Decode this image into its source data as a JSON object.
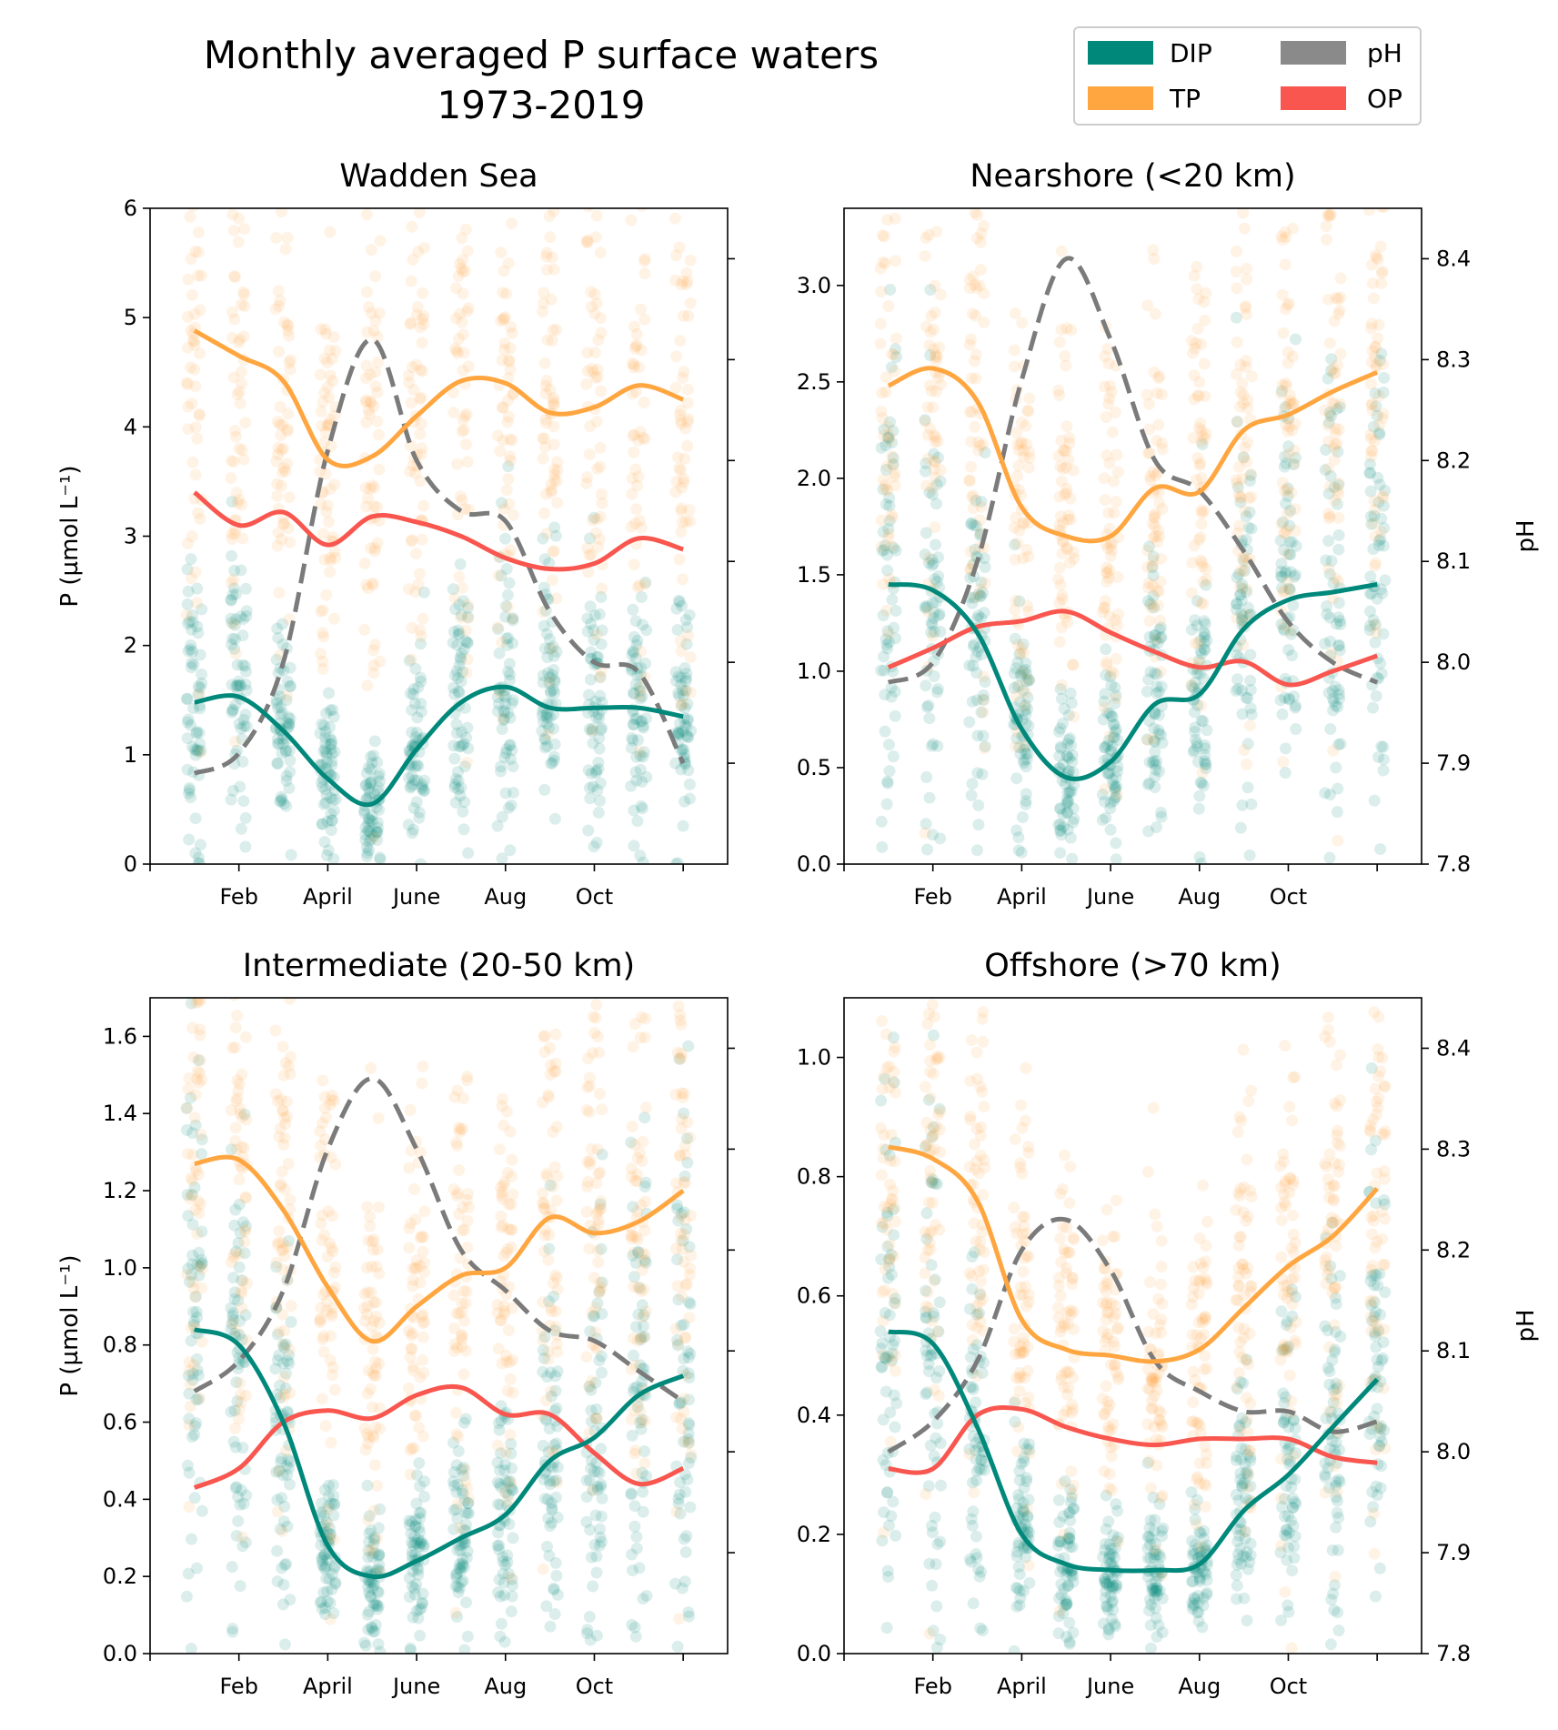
{
  "figure_title": [
    "Monthly averaged P surface waters",
    "1973-2019"
  ],
  "legend": [
    {
      "label": "DIP",
      "color": "#00897b"
    },
    {
      "label": "TP",
      "color": "#ffa640"
    },
    {
      "label": "pH",
      "color": "#8a8a8a"
    },
    {
      "label": "OP",
      "color": "#f8564e"
    }
  ],
  "chart_data": [
    {
      "type": "line",
      "title": "Wadden Sea",
      "ylabel": "P (µmol L⁻¹)",
      "y2label": "",
      "ylim": [
        0,
        6
      ],
      "y2lim": [
        7.8,
        8.45
      ],
      "yticks": [
        "0",
        "1",
        "2",
        "3",
        "4",
        "5",
        "6"
      ],
      "y2ticks": [
        "",
        "",
        "",
        "",
        "",
        ""
      ],
      "x_tick_labels": [
        "",
        "Feb",
        "April",
        "June",
        "Aug",
        "Oct",
        ""
      ],
      "x": [
        1,
        2,
        3,
        4,
        5,
        6,
        7,
        8,
        9,
        10,
        11,
        12
      ],
      "series": [
        {
          "name": "DIP",
          "values": [
            1.48,
            1.53,
            1.22,
            0.78,
            0.55,
            1.05,
            1.48,
            1.62,
            1.43,
            1.43,
            1.43,
            1.35
          ]
        },
        {
          "name": "TP",
          "values": [
            4.88,
            4.65,
            4.42,
            3.7,
            3.73,
            4.1,
            4.42,
            4.4,
            4.13,
            4.18,
            4.38,
            4.25
          ]
        },
        {
          "name": "OP",
          "values": [
            3.4,
            3.1,
            3.22,
            2.92,
            3.18,
            3.13,
            3.0,
            2.8,
            2.7,
            2.75,
            2.98,
            2.88
          ]
        },
        {
          "name": "pH",
          "values": [
            7.89,
            7.91,
            8.0,
            8.21,
            8.32,
            8.2,
            8.15,
            8.14,
            8.05,
            8.0,
            7.99,
            7.9
          ]
        }
      ],
      "scatter_groups": [
        "DIP",
        "TP"
      ]
    },
    {
      "type": "line",
      "title": "Nearshore (<20 km)",
      "ylabel": "",
      "y2label": "pH",
      "ylim": [
        0,
        3.4
      ],
      "y2lim": [
        7.8,
        8.45
      ],
      "yticks": [
        "0.0",
        "0.5",
        "1.0",
        "1.5",
        "2.0",
        "2.5",
        "3.0"
      ],
      "y2ticks": [
        "7.8",
        "7.9",
        "8.0",
        "8.1",
        "8.2",
        "8.3",
        "8.4"
      ],
      "x_tick_labels": [
        "",
        "Feb",
        "April",
        "June",
        "Aug",
        "Oct",
        ""
      ],
      "x": [
        1,
        2,
        3,
        4,
        5,
        6,
        7,
        8,
        9,
        10,
        11,
        12
      ],
      "series": [
        {
          "name": "DIP",
          "values": [
            1.45,
            1.42,
            1.2,
            0.7,
            0.45,
            0.53,
            0.83,
            0.88,
            1.22,
            1.37,
            1.41,
            1.45
          ]
        },
        {
          "name": "TP",
          "values": [
            2.48,
            2.57,
            2.4,
            1.85,
            1.7,
            1.7,
            1.95,
            1.93,
            2.25,
            2.33,
            2.45,
            2.55
          ]
        },
        {
          "name": "OP",
          "values": [
            1.02,
            1.12,
            1.23,
            1.26,
            1.31,
            1.2,
            1.1,
            1.02,
            1.05,
            0.93,
            1.0,
            1.08
          ]
        },
        {
          "name": "pH",
          "values": [
            7.98,
            8.0,
            8.1,
            8.28,
            8.4,
            8.32,
            8.2,
            8.17,
            8.11,
            8.04,
            8.0,
            7.98
          ]
        }
      ],
      "scatter_groups": [
        "DIP",
        "TP"
      ]
    },
    {
      "type": "line",
      "title": "Intermediate (20-50 km)",
      "ylabel": "P (µmol L⁻¹)",
      "y2label": "",
      "ylim": [
        0,
        1.7
      ],
      "y2lim": [
        7.8,
        8.45
      ],
      "yticks": [
        "0.0",
        "0.2",
        "0.4",
        "0.6",
        "0.8",
        "1.0",
        "1.2",
        "1.4",
        "1.6"
      ],
      "y2ticks": [
        "",
        "",
        "",
        "",
        "",
        ""
      ],
      "x_tick_labels": [
        "",
        "Feb",
        "April",
        "June",
        "Aug",
        "Oct",
        ""
      ],
      "x": [
        1,
        2,
        3,
        4,
        5,
        6,
        7,
        8,
        9,
        10,
        11,
        12
      ],
      "series": [
        {
          "name": "DIP",
          "values": [
            0.84,
            0.8,
            0.6,
            0.28,
            0.2,
            0.24,
            0.3,
            0.36,
            0.5,
            0.56,
            0.67,
            0.72
          ]
        },
        {
          "name": "TP",
          "values": [
            1.27,
            1.28,
            1.15,
            0.95,
            0.81,
            0.9,
            0.98,
            1.0,
            1.13,
            1.09,
            1.12,
            1.2
          ]
        },
        {
          "name": "OP",
          "values": [
            0.43,
            0.48,
            0.6,
            0.63,
            0.61,
            0.67,
            0.69,
            0.62,
            0.62,
            0.52,
            0.44,
            0.48
          ]
        },
        {
          "name": "pH",
          "values": [
            8.06,
            8.09,
            8.16,
            8.3,
            8.37,
            8.3,
            8.2,
            8.16,
            8.12,
            8.11,
            8.08,
            8.05
          ]
        }
      ],
      "scatter_groups": [
        "DIP",
        "TP"
      ]
    },
    {
      "type": "line",
      "title": "Offshore (>70 km)",
      "ylabel": "",
      "y2label": "pH",
      "ylim": [
        0,
        1.1
      ],
      "y2lim": [
        7.8,
        8.45
      ],
      "yticks": [
        "0.0",
        "0.2",
        "0.4",
        "0.6",
        "0.8",
        "1.0"
      ],
      "y2ticks": [
        "7.8",
        "7.9",
        "8.0",
        "8.1",
        "8.2",
        "8.3",
        "8.4"
      ],
      "x_tick_labels": [
        "",
        "Feb",
        "April",
        "June",
        "Aug",
        "Oct",
        ""
      ],
      "x": [
        1,
        2,
        3,
        4,
        5,
        6,
        7,
        8,
        9,
        10,
        11,
        12
      ],
      "series": [
        {
          "name": "DIP",
          "values": [
            0.54,
            0.52,
            0.38,
            0.2,
            0.15,
            0.14,
            0.14,
            0.15,
            0.24,
            0.3,
            0.38,
            0.46
          ]
        },
        {
          "name": "TP",
          "values": [
            0.85,
            0.83,
            0.76,
            0.56,
            0.51,
            0.5,
            0.49,
            0.51,
            0.58,
            0.65,
            0.7,
            0.78
          ]
        },
        {
          "name": "OP",
          "values": [
            0.31,
            0.31,
            0.4,
            0.41,
            0.38,
            0.36,
            0.35,
            0.36,
            0.36,
            0.36,
            0.33,
            0.32
          ]
        },
        {
          "name": "pH",
          "values": [
            8.0,
            8.03,
            8.09,
            8.2,
            8.23,
            8.18,
            8.09,
            8.06,
            8.04,
            8.04,
            8.02,
            8.03
          ]
        }
      ],
      "scatter_groups": [
        "DIP",
        "TP"
      ]
    }
  ]
}
